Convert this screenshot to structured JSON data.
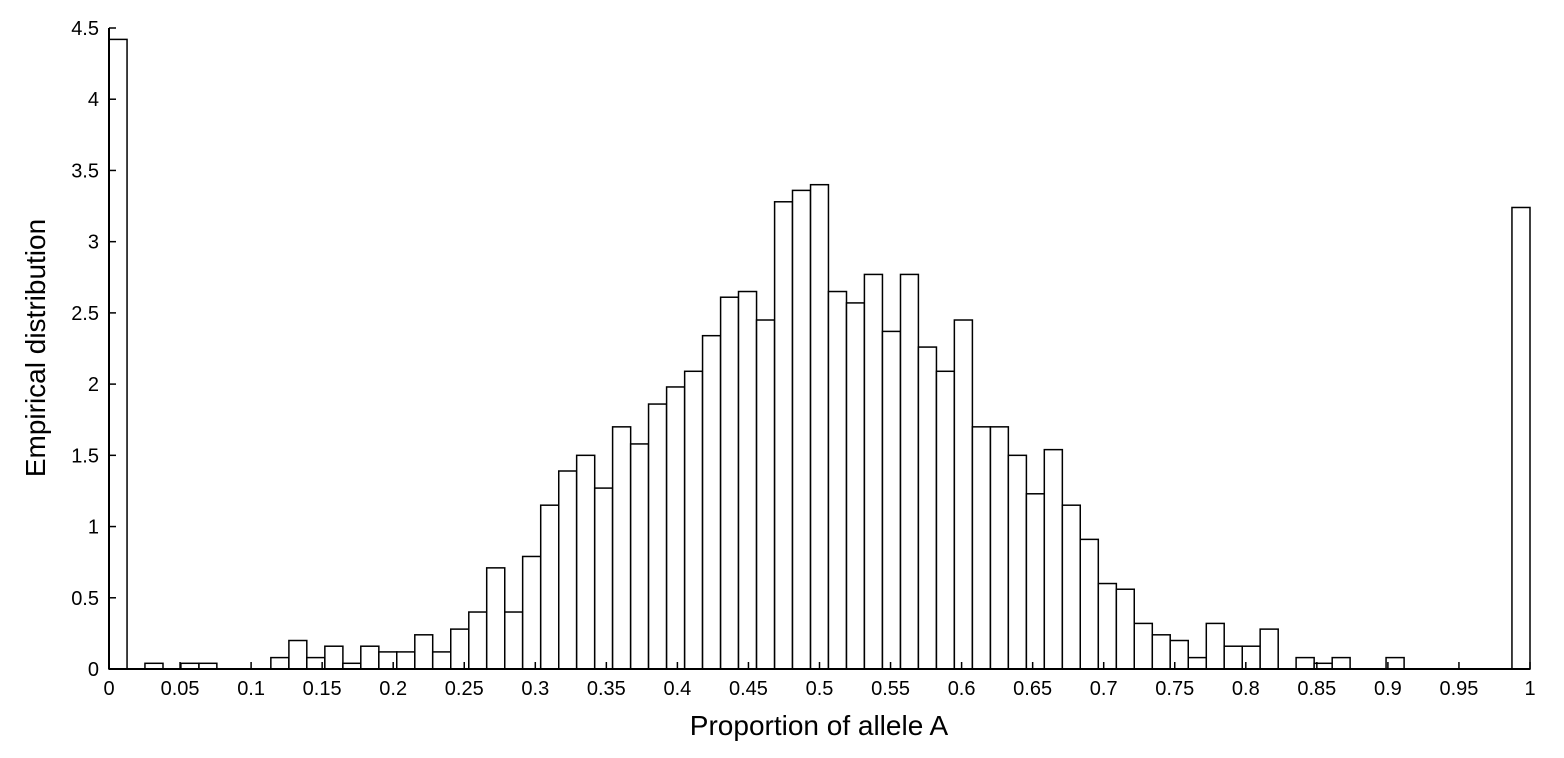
{
  "chart_data": {
    "type": "histogram",
    "xlabel": "Proportion of allele A",
    "ylabel": "Empirical distribution",
    "bins": [
      0,
      0.0127,
      0.0253,
      0.038,
      0.0506,
      0.0633,
      0.0759,
      0.0886,
      0.1013,
      0.1139,
      0.1266,
      0.1392,
      0.1519,
      0.1646,
      0.1772,
      0.1899,
      0.2025,
      0.2152,
      0.2278,
      0.2405,
      0.2532,
      0.2658,
      0.2785,
      0.2911,
      0.3038,
      0.3165,
      0.3291,
      0.3418,
      0.3544,
      0.3671,
      0.3797,
      0.3924,
      0.4051,
      0.4177,
      0.4304,
      0.443,
      0.4557,
      0.4684,
      0.481,
      0.4937,
      0.5063,
      0.519,
      0.5316,
      0.5443,
      0.557,
      0.5696,
      0.5823,
      0.5949,
      0.6076,
      0.6203,
      0.6329,
      0.6456,
      0.6582,
      0.6709,
      0.6835,
      0.6962,
      0.7089,
      0.7215,
      0.7342,
      0.7468,
      0.7595,
      0.7722,
      0.7848,
      0.7975,
      0.8101,
      0.8228,
      0.8354,
      0.8481,
      0.8608,
      0.8734,
      0.8861,
      0.8987,
      0.9114,
      0.9241,
      0.9367,
      0.9494,
      0.962,
      0.9747,
      0.9873,
      1
    ],
    "values": [
      4.42,
      0,
      0.04,
      0,
      0.04,
      0.04,
      0,
      0,
      0,
      0.08,
      0.2,
      0.08,
      0.16,
      0.04,
      0.16,
      0.12,
      0.12,
      0.24,
      0.12,
      0.28,
      0.4,
      0.71,
      0.4,
      0.79,
      1.15,
      1.39,
      1.5,
      1.27,
      1.7,
      1.58,
      1.86,
      1.98,
      2.09,
      2.34,
      2.61,
      2.65,
      2.45,
      3.28,
      3.36,
      3.4,
      2.65,
      2.57,
      2.77,
      2.37,
      2.77,
      2.26,
      2.09,
      2.45,
      1.7,
      1.7,
      1.5,
      1.23,
      1.54,
      1.15,
      0.91,
      0.6,
      0.56,
      0.32,
      0.24,
      0.2,
      0.08,
      0.32,
      0.16,
      0.16,
      0.28,
      0,
      0.08,
      0.04,
      0.08,
      0,
      0,
      0.08,
      0,
      0,
      0,
      0,
      0,
      0,
      3.24
    ],
    "color": "#ffffff",
    "edgecolor": "#000000",
    "xlim": [
      0,
      1
    ],
    "ylim": [
      0,
      4.5
    ],
    "xticks": [
      0,
      0.05,
      0.1,
      0.15,
      0.2,
      0.25,
      0.3,
      0.35,
      0.4,
      0.45,
      0.5,
      0.55,
      0.6,
      0.65,
      0.7,
      0.75,
      0.8,
      0.85,
      0.9,
      0.95,
      1
    ],
    "yticks": [
      0,
      0.5,
      1,
      1.5,
      2,
      2.5,
      3,
      3.5,
      4,
      4.5
    ],
    "grid": false
  }
}
